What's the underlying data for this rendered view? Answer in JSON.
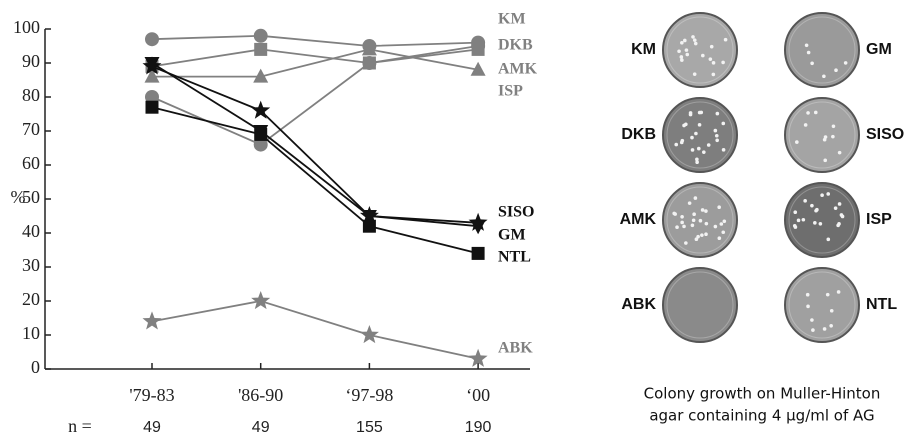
{
  "chart_data": {
    "type": "line",
    "y_label": "%",
    "categories": [
      "'79-83",
      "'86-90",
      "‘97-98",
      "‘00"
    ],
    "n_label": "n =",
    "n": [
      49,
      49,
      155,
      190
    ],
    "ylim": [
      0,
      100
    ],
    "yticks": [
      0,
      10,
      20,
      30,
      40,
      50,
      60,
      70,
      80,
      90,
      100
    ],
    "series": [
      {
        "name": "KM",
        "color": "#808080",
        "marker": "circle",
        "values": [
          97,
          98,
          95,
          96
        ]
      },
      {
        "name": "DKB",
        "color": "#808080",
        "marker": "square",
        "values": [
          89,
          94,
          90,
          94
        ]
      },
      {
        "name": "AMK",
        "color": "#808080",
        "marker": "triangle",
        "values": [
          86,
          86,
          94,
          88
        ]
      },
      {
        "name": "ISP",
        "color": "#808080",
        "marker": "circle",
        "values": [
          80,
          66,
          90,
          95
        ]
      },
      {
        "name": "SISO",
        "color": "#111111",
        "marker": "star",
        "values": [
          89,
          76,
          45,
          43
        ]
      },
      {
        "name": "GM",
        "color": "#111111",
        "marker": "tridown",
        "values": [
          90,
          70,
          45,
          42
        ]
      },
      {
        "name": "NTL",
        "color": "#111111",
        "marker": "square",
        "values": [
          77,
          69,
          42,
          34
        ]
      },
      {
        "name": "ABK",
        "color": "#808080",
        "marker": "star",
        "values": [
          14,
          20,
          10,
          3
        ]
      }
    ]
  },
  "panel": {
    "dishes": [
      "KM",
      "GM",
      "DKB",
      "SISO",
      "AMK",
      "ISP",
      "ABK",
      "NTL"
    ],
    "caption": [
      "Colony growth on Muller-Hinton",
      "agar containing 4 μg/ml of AG"
    ]
  }
}
